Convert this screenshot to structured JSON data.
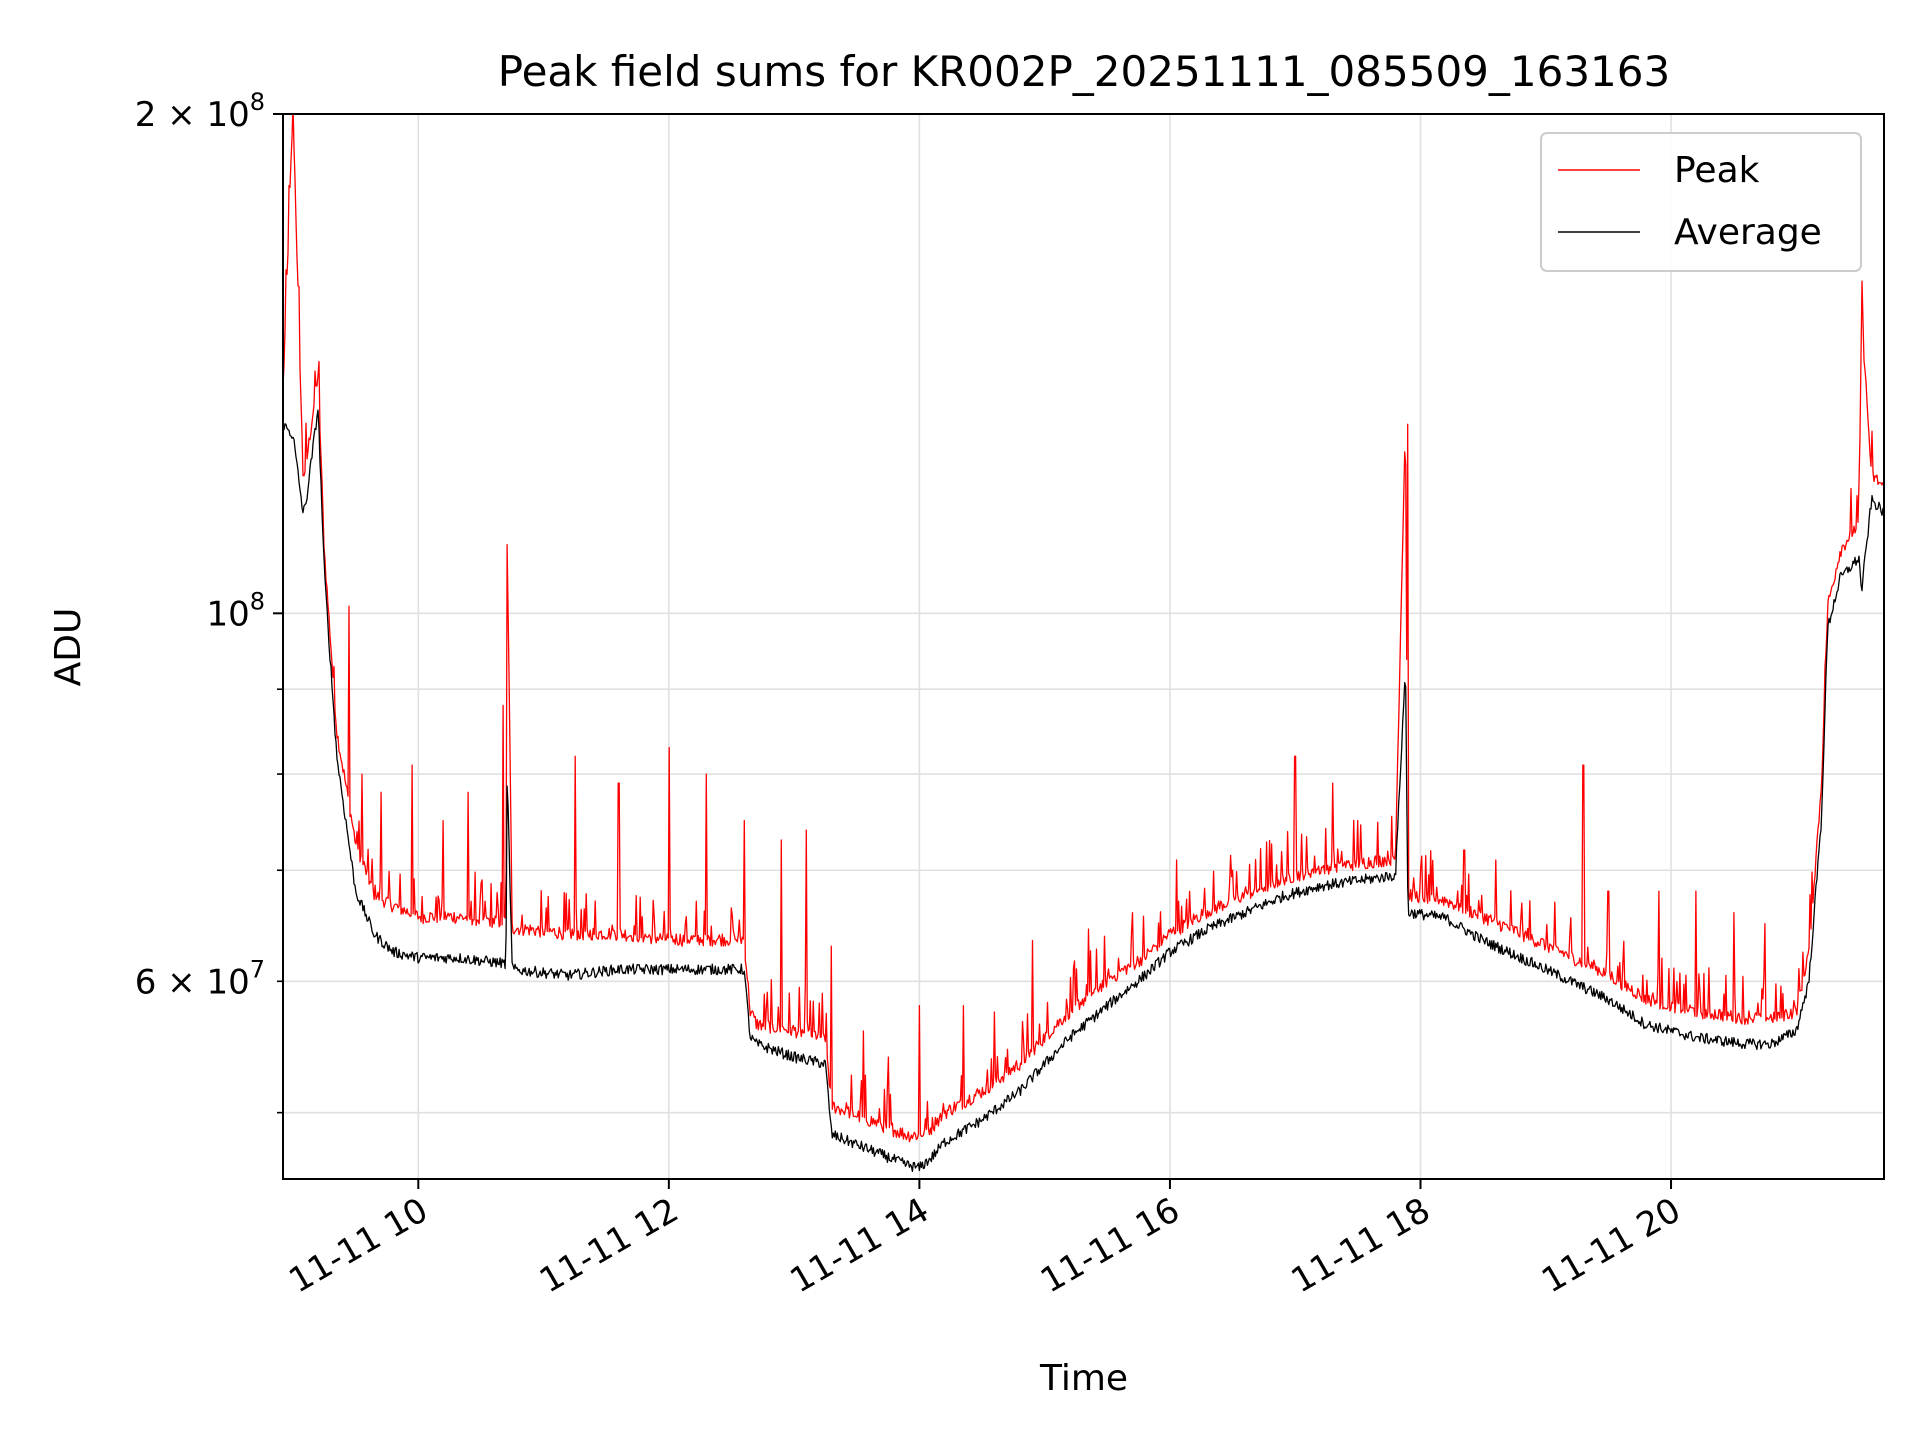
{
  "chart_data": {
    "type": "line",
    "title": "Peak field sums for KR002P_20251111_085509_163163",
    "xlabel": "Time",
    "ylabel": "ADU",
    "x_unit": "hours (Nov 11 2025)",
    "xlim": [
      8.92,
      21.7
    ],
    "ylim": [
      45600000,
      200000000
    ],
    "y_scale": "log",
    "grid": true,
    "legend": "top-right",
    "x_ticks": [
      10,
      12,
      14,
      16,
      18,
      20
    ],
    "x_tick_labels": [
      "11-11 10",
      "11-11 12",
      "11-11 14",
      "11-11 16",
      "11-11 18",
      "11-11 20"
    ],
    "y_major_ticks": [
      100000000,
      200000000
    ],
    "y_major_labels": [
      "10",
      "2 × 10"
    ],
    "y_minor_ticks": [
      50000000,
      60000000,
      70000000,
      80000000,
      90000000
    ],
    "y_minor_labels": {
      "60000000": "6 × 10"
    },
    "y_exponent": "8",
    "y_minor_exponent": "7",
    "series": [
      {
        "name": "Peak",
        "color": "#ff0000",
        "x": [
          8.92,
          9.0,
          9.08,
          9.1,
          9.2,
          9.25,
          9.35,
          9.5,
          9.65,
          9.8,
          10.0,
          10.3,
          10.7,
          10.71,
          10.75,
          11.2,
          11.6,
          12.0,
          12.6,
          12.65,
          12.7,
          13.0,
          13.25,
          13.3,
          13.6,
          13.9,
          14.0,
          14.1,
          14.2,
          14.5,
          14.8,
          15.0,
          15.2,
          15.5,
          15.8,
          16.0,
          16.3,
          16.6,
          16.9,
          17.2,
          17.5,
          17.8,
          17.88,
          17.9,
          17.92,
          18.2,
          18.5,
          18.8,
          19.1,
          19.5,
          19.8,
          20.2,
          20.6,
          20.8,
          21.0,
          21.1,
          21.2,
          21.25,
          21.35,
          21.45,
          21.5,
          21.52,
          21.6,
          21.7
        ],
        "y": [
          135000000,
          200000000,
          120000000,
          121000000,
          138000000,
          108000000,
          84000000,
          72000000,
          67000000,
          66000000,
          65000000,
          65000000,
          64500000,
          110000000,
          64000000,
          63500000,
          63500000,
          63000000,
          63000000,
          57000000,
          56000000,
          55500000,
          55000000,
          50000000,
          49000000,
          48000000,
          48000000,
          48500000,
          49500000,
          51000000,
          53000000,
          55000000,
          57000000,
          59500000,
          61500000,
          63500000,
          65500000,
          67000000,
          68500000,
          69500000,
          70000000,
          70500000,
          130000000,
          67000000,
          67000000,
          66500000,
          65000000,
          63500000,
          62000000,
          60000000,
          58000000,
          57000000,
          56500000,
          56500000,
          57000000,
          62000000,
          78000000,
          100000000,
          108000000,
          111000000,
          112000000,
          150000000,
          120000000,
          118000000
        ]
      },
      {
        "name": "Average",
        "color": "#000000",
        "x": [
          8.92,
          9.0,
          9.08,
          9.1,
          9.2,
          9.25,
          9.35,
          9.5,
          9.65,
          9.8,
          10.0,
          10.3,
          10.7,
          10.71,
          10.75,
          11.2,
          11.6,
          12.0,
          12.6,
          12.65,
          12.7,
          13.0,
          13.25,
          13.3,
          13.6,
          13.9,
          14.0,
          14.1,
          14.2,
          14.5,
          14.8,
          15.0,
          15.2,
          15.5,
          15.8,
          16.0,
          16.3,
          16.6,
          16.9,
          17.2,
          17.5,
          17.8,
          17.88,
          17.9,
          17.92,
          18.2,
          18.5,
          18.8,
          19.1,
          19.5,
          19.8,
          20.2,
          20.6,
          20.8,
          21.0,
          21.1,
          21.2,
          21.25,
          21.35,
          21.45,
          21.5,
          21.52,
          21.6,
          21.7
        ],
        "y": [
          130000000,
          128000000,
          115000000,
          116000000,
          133000000,
          106000000,
          82000000,
          68000000,
          64000000,
          62500000,
          62000000,
          62000000,
          61500000,
          80000000,
          61000000,
          60500000,
          61000000,
          61000000,
          61000000,
          55500000,
          55000000,
          54000000,
          53500000,
          48500000,
          47500000,
          46500000,
          46300000,
          47000000,
          48000000,
          49500000,
          51500000,
          53500000,
          55500000,
          58000000,
          60500000,
          62500000,
          64500000,
          66000000,
          67500000,
          68500000,
          69000000,
          69500000,
          93000000,
          66000000,
          66000000,
          65500000,
          63500000,
          62000000,
          60500000,
          58500000,
          56500000,
          55500000,
          55000000,
          55000000,
          56000000,
          60000000,
          75000000,
          98000000,
          105000000,
          107000000,
          108000000,
          103000000,
          117000000,
          115000000
        ]
      }
    ],
    "spikes": {
      "Peak": [
        [
          9.45,
          101000000
        ],
        [
          9.55,
          80000000
        ],
        [
          9.7,
          78000000
        ],
        [
          9.95,
          81000000
        ],
        [
          10.2,
          75000000
        ],
        [
          10.4,
          78000000
        ],
        [
          10.68,
          88000000
        ],
        [
          10.71,
          110000000
        ],
        [
          11.25,
          82000000
        ],
        [
          11.6,
          79000000
        ],
        [
          12.0,
          83000000
        ],
        [
          12.3,
          80000000
        ],
        [
          12.6,
          75000000
        ],
        [
          12.9,
          73000000
        ],
        [
          13.1,
          74000000
        ],
        [
          13.3,
          63000000
        ],
        [
          13.55,
          56000000
        ],
        [
          13.75,
          54000000
        ],
        [
          14.0,
          58000000
        ],
        [
          14.35,
          58000000
        ],
        [
          14.6,
          57500000
        ],
        [
          14.9,
          63500000
        ],
        [
          15.35,
          64500000
        ],
        [
          15.7,
          66000000
        ],
        [
          16.05,
          71000000
        ],
        [
          16.5,
          70000000
        ],
        [
          17.0,
          82000000
        ],
        [
          17.3,
          79000000
        ],
        [
          17.5,
          75000000
        ],
        [
          17.9,
          130000000
        ],
        [
          18.35,
          72000000
        ],
        [
          18.6,
          71000000
        ],
        [
          19.3,
          81000000
        ],
        [
          19.5,
          68000000
        ],
        [
          19.9,
          68000000
        ],
        [
          20.2,
          68000000
        ],
        [
          20.5,
          66000000
        ],
        [
          20.75,
          65000000
        ],
        [
          21.53,
          150000000
        ]
      ]
    }
  }
}
